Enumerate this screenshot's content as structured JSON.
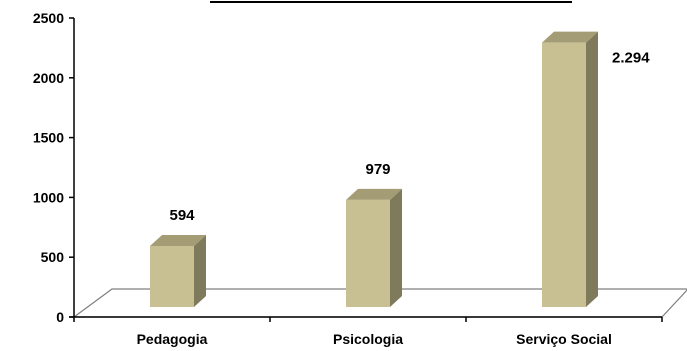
{
  "chart_data": {
    "type": "bar",
    "title": "",
    "xlabel": "",
    "ylabel": "",
    "categories": [
      "Pedagogia",
      "Psicologia",
      "Serviço Social"
    ],
    "values": [
      594,
      979,
      2294
    ],
    "data_labels": [
      "594",
      "979",
      "2.294"
    ],
    "ylim": [
      0,
      2500
    ],
    "yticks": [
      "0",
      "500",
      "1000",
      "1500",
      "2000",
      "2500"
    ],
    "grid": false,
    "legend": "none",
    "bar_style": "3d",
    "colors": {
      "bar_front": "#c8bf93",
      "bar_side": "#807a5c",
      "bar_top": "#a49c75",
      "axis": "#000000"
    }
  }
}
